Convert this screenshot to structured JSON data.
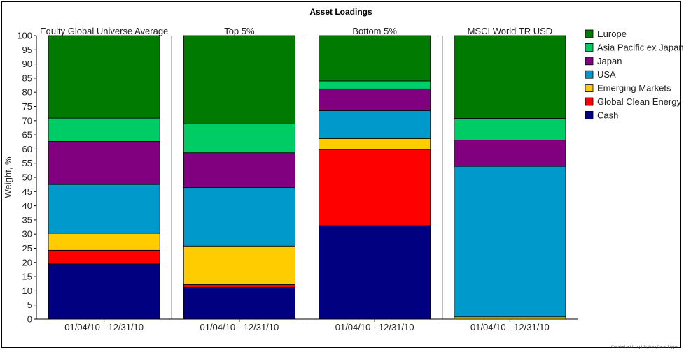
{
  "chart_data": {
    "type": "bar",
    "stacked": true,
    "title": "Asset Loadings",
    "ylabel": "Weight, %",
    "ylim": [
      0,
      100
    ],
    "yticks": [
      0,
      5,
      10,
      15,
      20,
      25,
      30,
      35,
      40,
      45,
      50,
      55,
      60,
      65,
      70,
      75,
      80,
      85,
      90,
      95,
      100
    ],
    "grid": false,
    "legend_position": "right",
    "panels": [
      {
        "name": "Equity Global Universe Average",
        "category": "01/04/10 - 12/31/10"
      },
      {
        "name": "Top 5%",
        "category": "01/04/10 - 12/31/10"
      },
      {
        "name": "Bottom 5%",
        "category": "01/04/10 - 12/31/10"
      },
      {
        "name": "MSCI World TR USD",
        "category": "01/04/10 - 12/31/10"
      }
    ],
    "series": [
      {
        "name": "Cash",
        "color": "#000080",
        "values": [
          19.5,
          11.2,
          33.0,
          0.0
        ]
      },
      {
        "name": "Global Clean Energy",
        "color": "#ff0000",
        "values": [
          4.8,
          1.0,
          26.7,
          0.0
        ]
      },
      {
        "name": "Emerging Markets",
        "color": "#ffcc00",
        "values": [
          6.0,
          13.6,
          4.0,
          0.8
        ]
      },
      {
        "name": "USA",
        "color": "#0099cc",
        "values": [
          17.2,
          20.6,
          9.8,
          53.1
        ]
      },
      {
        "name": "Japan",
        "color": "#800080",
        "values": [
          15.2,
          12.3,
          7.7,
          9.3
        ]
      },
      {
        "name": "Asia Pacific ex Japan",
        "color": "#00cc66",
        "values": [
          8.2,
          10.2,
          2.8,
          7.6
        ]
      },
      {
        "name": "Europe",
        "color": "#007a00",
        "values": [
          29.1,
          31.1,
          16.0,
          29.2
        ]
      }
    ],
    "legend_order": [
      "Europe",
      "Asia Pacific ex Japan",
      "Japan",
      "USA",
      "Emerging Markets",
      "Global Clean Energy",
      "Cash"
    ]
  },
  "credit": "Created with mpi Stylus (Data: Lipper"
}
